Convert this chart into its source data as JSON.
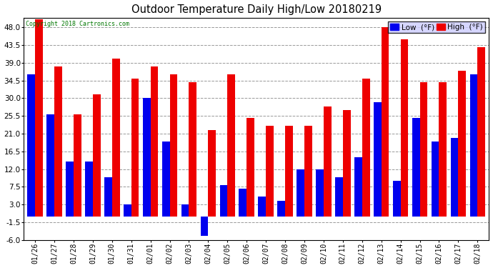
{
  "title": "Outdoor Temperature Daily High/Low 20180219",
  "copyright": "Copyright 2018 Cartronics.com",
  "legend_low": "Low  (°F)",
  "legend_high": "High  (°F)",
  "dates": [
    "01/26",
    "01/27",
    "01/28",
    "01/29",
    "01/30",
    "01/31",
    "02/01",
    "02/02",
    "02/03",
    "02/04",
    "02/05",
    "02/06",
    "02/07",
    "02/08",
    "02/09",
    "02/10",
    "02/11",
    "02/12",
    "02/13",
    "02/14",
    "02/15",
    "02/16",
    "02/17",
    "02/18"
  ],
  "low": [
    36,
    26,
    14,
    14,
    10,
    3,
    30,
    19,
    3,
    -5,
    8,
    7,
    5,
    4,
    12,
    12,
    10,
    15,
    29,
    9,
    25,
    19,
    20,
    36
  ],
  "high": [
    50,
    38,
    26,
    31,
    40,
    35,
    38,
    36,
    34,
    22,
    36,
    25,
    23,
    23,
    23,
    28,
    27,
    35,
    48,
    45,
    34,
    34,
    37,
    43
  ],
  "ylim": [
    -6.0,
    50.5
  ],
  "yticks": [
    -6.0,
    -1.5,
    3.0,
    7.5,
    12.0,
    16.5,
    21.0,
    25.5,
    30.0,
    34.5,
    39.0,
    43.5,
    48.0
  ],
  "low_color": "#0000ee",
  "high_color": "#ee0000",
  "bg_color": "#ffffff",
  "grid_color": "#999999",
  "bar_width": 0.4,
  "figsize": [
    6.9,
    3.75
  ],
  "dpi": 100
}
